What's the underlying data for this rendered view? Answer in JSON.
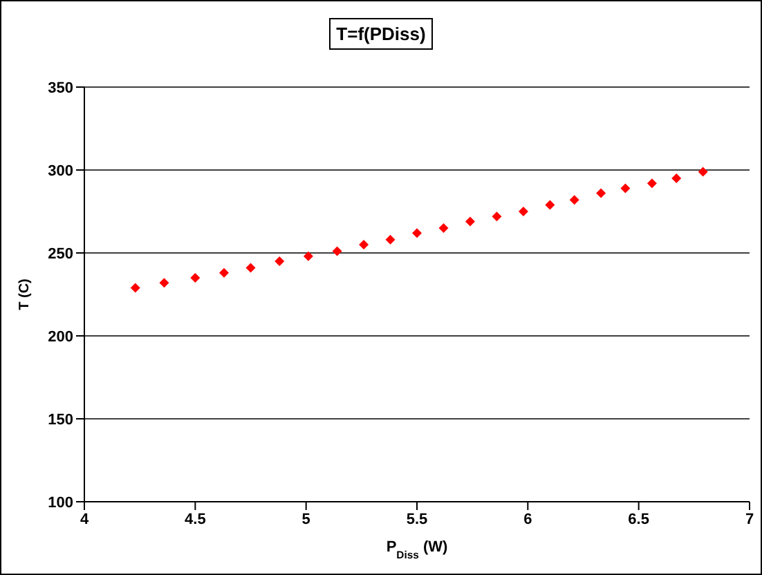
{
  "chart_data": {
    "type": "scatter",
    "title": "T=f(PDiss)",
    "xlabel": "P$_{Diss}$ (W)",
    "ylabel": "T (C)",
    "x": [
      4.23,
      4.36,
      4.5,
      4.63,
      4.75,
      4.88,
      5.01,
      5.14,
      5.26,
      5.38,
      5.5,
      5.62,
      5.74,
      5.86,
      5.98,
      6.1,
      6.21,
      6.33,
      6.44,
      6.56,
      6.67,
      6.79
    ],
    "series": [
      {
        "color": "#ff0000",
        "values": [
          229,
          232,
          235,
          238,
          241,
          245,
          248,
          251,
          255,
          258,
          262,
          265,
          269,
          272,
          275,
          279,
          282,
          286,
          289,
          292,
          295,
          299
        ]
      }
    ],
    "xlim": [
      4,
      7
    ],
    "xticks": [
      4,
      4.5,
      5,
      5.5,
      6,
      6.5,
      7
    ],
    "ylim": [
      100,
      350
    ],
    "yticks": [
      100,
      150,
      200,
      250,
      300,
      350
    ],
    "grid": "y",
    "marker": "diamond",
    "legend": false
  }
}
